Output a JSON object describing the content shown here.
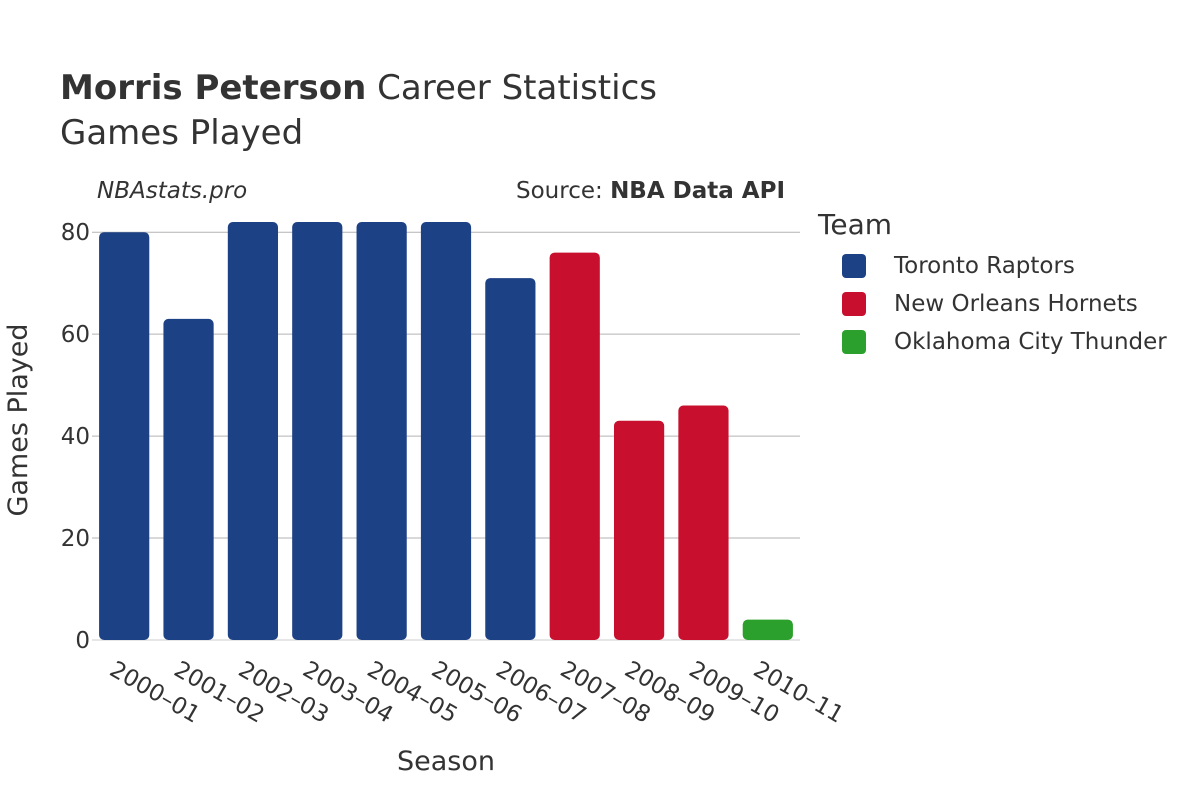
{
  "header": {
    "title_bold": "Morris Peterson",
    "title_rest": " Career Statistics",
    "subtitle": "Games Played",
    "site": "NBAstats.pro",
    "source_prefix": "Source: ",
    "source_name": "NBA Data API"
  },
  "legend": {
    "title": "Team",
    "items": [
      {
        "label": "Toronto Raptors",
        "color": "#1d4185"
      },
      {
        "label": "New Orleans Hornets",
        "color": "#c8102e"
      },
      {
        "label": "Oklahoma City Thunder",
        "color": "#2ca02c"
      }
    ]
  },
  "chart_data": {
    "type": "bar",
    "xlabel": "Season",
    "ylabel": "Games Played",
    "ylim": [
      0,
      82
    ],
    "yticks": [
      0,
      20,
      40,
      60,
      80
    ],
    "grid": true,
    "legend_position": "right",
    "categories": [
      "2000–01",
      "2001–02",
      "2002–03",
      "2003–04",
      "2004–05",
      "2005–06",
      "2006–07",
      "2007–08",
      "2008–09",
      "2009–10",
      "2010–11"
    ],
    "values": [
      80,
      63,
      82,
      82,
      82,
      82,
      71,
      76,
      43,
      46,
      4
    ],
    "teams": [
      "Toronto Raptors",
      "Toronto Raptors",
      "Toronto Raptors",
      "Toronto Raptors",
      "Toronto Raptors",
      "Toronto Raptors",
      "Toronto Raptors",
      "New Orleans Hornets",
      "New Orleans Hornets",
      "New Orleans Hornets",
      "Oklahoma City Thunder"
    ]
  }
}
